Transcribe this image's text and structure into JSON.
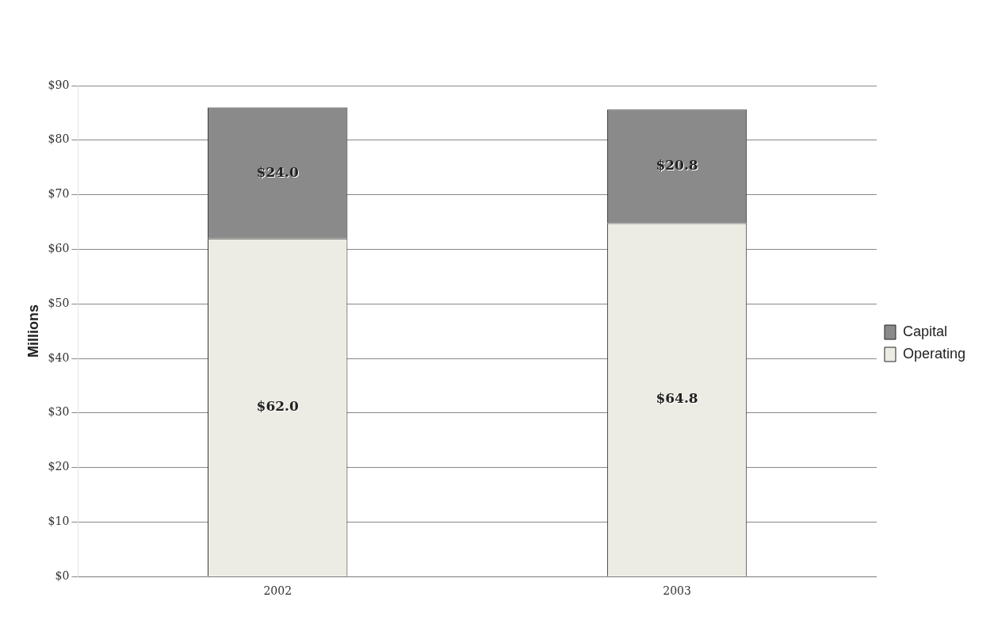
{
  "chart_data": {
    "type": "bar",
    "stacked": true,
    "categories": [
      "2002",
      "2003"
    ],
    "series": [
      {
        "name": "Operating",
        "color": "#ecece4",
        "values": [
          62.0,
          64.8
        ],
        "value_labels": [
          "$62.0",
          "$64.8"
        ]
      },
      {
        "name": "Capital",
        "color": "#8a8a8a",
        "values": [
          24.0,
          20.8
        ],
        "value_labels": [
          "$24.0",
          "$20.8"
        ]
      }
    ],
    "ylabel": "Millions",
    "ylim": [
      0,
      90
    ],
    "yticks": [
      {
        "value": 0,
        "label": "$0"
      },
      {
        "value": 10,
        "label": "$10"
      },
      {
        "value": 20,
        "label": "$20"
      },
      {
        "value": 30,
        "label": "$30"
      },
      {
        "value": 40,
        "label": "$40"
      },
      {
        "value": 50,
        "label": "$50"
      },
      {
        "value": 60,
        "label": "$60"
      },
      {
        "value": 70,
        "label": "$70"
      },
      {
        "value": 80,
        "label": "$80"
      },
      {
        "value": 90,
        "label": "$90"
      }
    ],
    "grid": "y",
    "legend": "right"
  }
}
